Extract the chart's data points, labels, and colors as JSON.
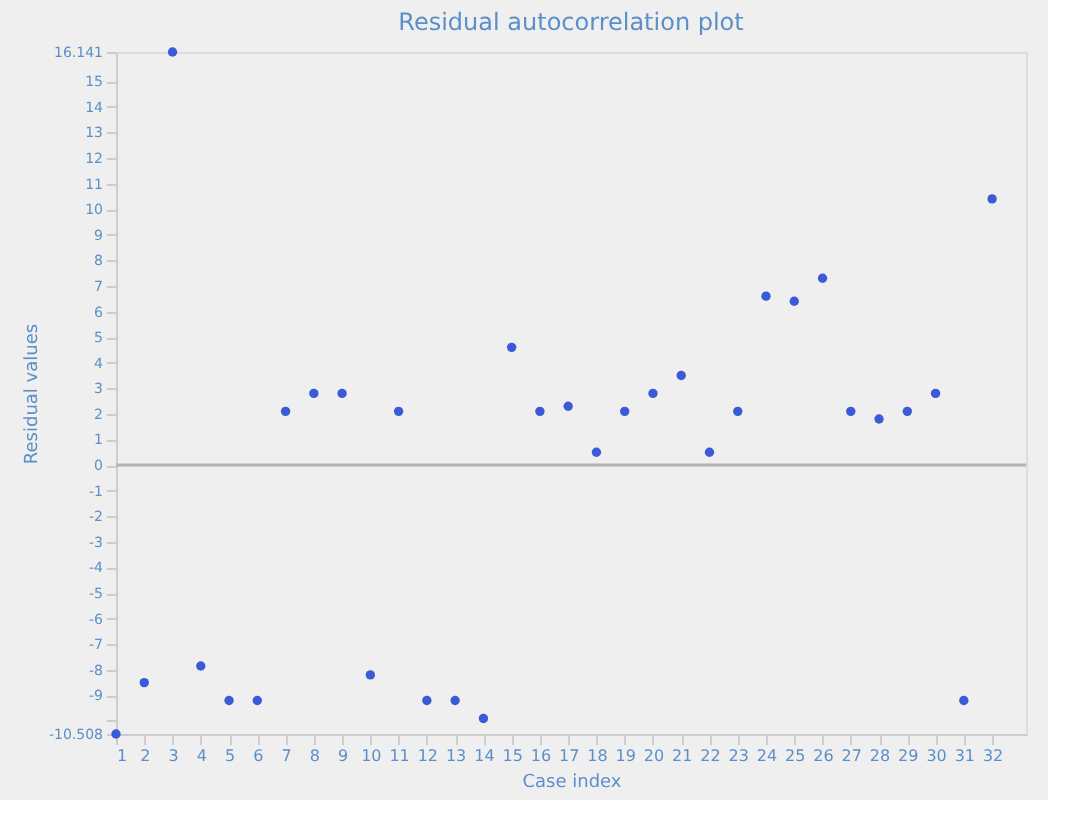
{
  "chart_data": {
    "type": "scatter",
    "title": "Residual autocorrelation plot",
    "xlabel": "Case index",
    "ylabel": "Residual values",
    "x": [
      1,
      2,
      3,
      4,
      5,
      6,
      7,
      8,
      9,
      10,
      11,
      12,
      13,
      14,
      15,
      16,
      17,
      18,
      19,
      20,
      21,
      22,
      23,
      24,
      25,
      26,
      27,
      28,
      29,
      30,
      31,
      32
    ],
    "series": [
      {
        "color": "#3b5bd6",
        "values": [
          -10.508,
          -8.5,
          16.141,
          -7.85,
          -9.2,
          -9.2,
          2.1,
          2.8,
          2.8,
          -8.2,
          2.1,
          -9.2,
          -9.2,
          -9.9,
          4.6,
          2.1,
          2.3,
          0.5,
          2.1,
          2.8,
          3.5,
          0.5,
          2.1,
          6.6,
          6.4,
          7.3,
          2.1,
          1.8,
          2.1,
          2.8,
          -9.2,
          10.4
        ]
      }
    ],
    "xlim": [
      1,
      33.2
    ],
    "xticks": [
      1,
      2,
      3,
      4,
      5,
      6,
      7,
      8,
      9,
      10,
      11,
      12,
      13,
      14,
      15,
      16,
      17,
      18,
      19,
      20,
      21,
      22,
      23,
      24,
      25,
      26,
      27,
      28,
      29,
      30,
      31,
      32
    ],
    "ylim": [
      -10.508,
      16.141
    ],
    "yticks": [
      -10.508,
      {
        "value": -10,
        "label": null
      },
      -9,
      -8,
      -7,
      -6,
      -5,
      -4,
      -3,
      -2,
      -1,
      0,
      1,
      2,
      3,
      4,
      5,
      6,
      7,
      8,
      9,
      10,
      11,
      12,
      13,
      14,
      15,
      16.141
    ],
    "ref_lines": [
      {
        "axis": "y",
        "value": 0,
        "color": "#b4b4b4"
      }
    ],
    "marker": "circle",
    "grid": false,
    "legend": false
  }
}
